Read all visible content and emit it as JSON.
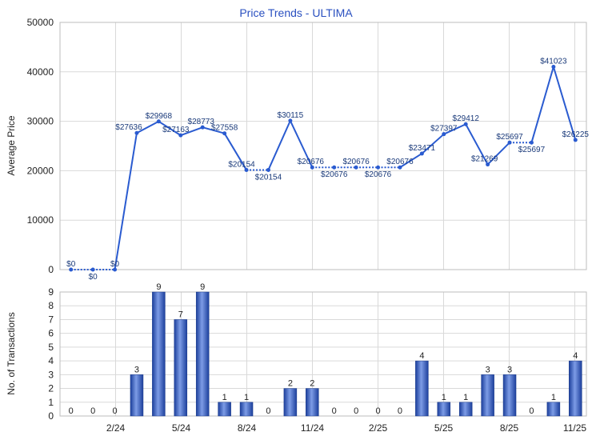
{
  "chart_data": [
    {
      "type": "line",
      "title": "Price Trends - ULTIMA",
      "ylabel": "Average Price",
      "ylim": [
        0,
        50000
      ],
      "yticks": [
        0,
        10000,
        20000,
        30000,
        40000,
        50000
      ],
      "grid": true,
      "x_labels": [
        "2/24",
        "5/24",
        "8/24",
        "11/24",
        "2/25",
        "5/25",
        "8/25",
        "11/25"
      ],
      "series": [
        {
          "values": [
            0,
            0,
            0,
            27636,
            29968,
            27163,
            28773,
            27558,
            20154,
            20154,
            30115,
            20676,
            20676,
            20676,
            20676,
            20676,
            23471,
            27397,
            29412,
            21269,
            25697,
            25697,
            41023,
            26225
          ],
          "labels": [
            "$0",
            "$0",
            "$0",
            "$27636",
            "$29968",
            "$27163",
            "$28773",
            "$27558",
            "$20154",
            "$20154",
            "$30115",
            "$20676",
            "$20676",
            "$20676",
            "$20676",
            "$20676",
            "$23471",
            "$27397",
            "$29412",
            "$21269",
            "$25697",
            "$25697",
            "$41023",
            "$26225"
          ],
          "interpolated": [
            false,
            true,
            false,
            false,
            false,
            false,
            false,
            false,
            false,
            true,
            false,
            false,
            true,
            true,
            true,
            true,
            false,
            false,
            false,
            false,
            false,
            true,
            false,
            false
          ]
        }
      ]
    },
    {
      "type": "bar",
      "ylabel": "No. of Transactions",
      "ylim": [
        0,
        9
      ],
      "yticks": [
        0,
        1,
        2,
        3,
        4,
        5,
        6,
        7,
        8,
        9
      ],
      "x_labels": [
        "2/24",
        "5/24",
        "8/24",
        "11/24",
        "2/25",
        "5/25",
        "8/25",
        "11/25"
      ],
      "values": [
        0,
        0,
        0,
        3,
        9,
        7,
        9,
        1,
        1,
        0,
        2,
        2,
        0,
        0,
        0,
        0,
        4,
        1,
        1,
        3,
        3,
        0,
        1,
        4
      ]
    }
  ],
  "colors": {
    "line": "#2a5bd0",
    "bar": "#2c55c8",
    "grid": "#d9d9d9",
    "title": "#2a50c0"
  }
}
